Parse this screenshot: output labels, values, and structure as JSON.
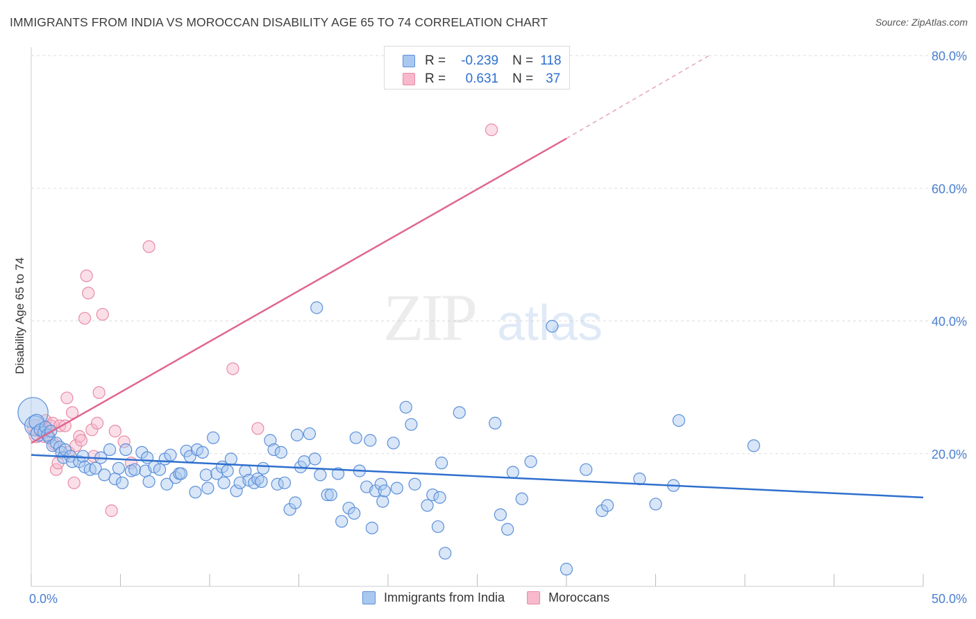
{
  "header": {
    "title": "IMMIGRANTS FROM INDIA VS MOROCCAN DISABILITY AGE 65 TO 74 CORRELATION CHART",
    "source": "Source: ZipAtlas.com"
  },
  "watermark": {
    "zip": "ZIP",
    "atlas": "atlas"
  },
  "legend": {
    "rows": [
      {
        "r_label": "R =",
        "r_value": "-0.239",
        "n_label": "N =",
        "n_value": "118"
      },
      {
        "r_label": "R =",
        "r_value": "0.631",
        "n_label": "N =",
        "n_value": "37"
      }
    ]
  },
  "colors": {
    "india_fill": "#a9c8f0",
    "india_stroke": "#5b8fd8",
    "india_line": "#2f6fce",
    "moroccan_fill": "#f7b9cb",
    "moroccan_stroke": "#e98aa5",
    "moroccan_line": "#e0668f",
    "grid": "#dddddd",
    "tick_label": "#4a7fd0"
  },
  "chart_data": {
    "type": "scatter",
    "title": "IMMIGRANTS FROM INDIA VS MOROCCAN DISABILITY AGE 65 TO 74 CORRELATION CHART",
    "xlabel": "",
    "ylabel": "Disability Age 65 to 74",
    "xlim": [
      0,
      50
    ],
    "ylim": [
      0,
      80
    ],
    "x_tick_labels": [
      "0.0%",
      "50.0%"
    ],
    "y_ticks": [
      20,
      40,
      60,
      80
    ],
    "y_tick_labels": [
      "20.0%",
      "40.0%",
      "60.0%",
      "80.0%"
    ],
    "grid": true,
    "legend_position": "top-center",
    "series": [
      {
        "name": "Immigrants from India",
        "trend": {
          "x0": 0,
          "y0": 19.8,
          "x1": 50,
          "y1": 13.4
        },
        "points": [
          [
            0.1,
            26.2,
            3
          ],
          [
            0.2,
            24.2,
            2
          ],
          [
            0.3,
            24.8,
            1.5
          ],
          [
            0.4,
            23.0,
            1.5
          ],
          [
            0.5,
            23.6,
            1
          ],
          [
            0.7,
            23.2,
            1
          ],
          [
            0.8,
            24.0,
            1
          ],
          [
            0.9,
            22.8,
            1
          ],
          [
            1.0,
            22.4,
            1
          ],
          [
            1.1,
            23.4,
            1
          ],
          [
            1.2,
            21.2,
            1
          ],
          [
            1.4,
            21.6,
            1
          ],
          [
            1.6,
            21.0,
            1
          ],
          [
            1.7,
            20.2,
            1
          ],
          [
            1.8,
            19.4,
            1
          ],
          [
            1.9,
            20.6,
            1
          ],
          [
            2.2,
            19.6,
            1
          ],
          [
            2.3,
            18.8,
            1
          ],
          [
            2.7,
            18.8,
            1
          ],
          [
            2.9,
            19.6,
            1
          ],
          [
            3.0,
            18.0,
            1
          ],
          [
            3.3,
            17.6,
            1
          ],
          [
            3.6,
            17.8,
            1
          ],
          [
            3.9,
            19.4,
            1
          ],
          [
            4.1,
            16.8,
            1
          ],
          [
            4.4,
            20.6,
            1
          ],
          [
            4.7,
            16.2,
            1
          ],
          [
            4.9,
            17.8,
            1
          ],
          [
            5.1,
            15.6,
            1
          ],
          [
            5.3,
            20.6,
            1
          ],
          [
            5.6,
            17.4,
            1
          ],
          [
            5.8,
            17.6,
            1
          ],
          [
            6.2,
            20.2,
            1
          ],
          [
            6.4,
            17.4,
            1
          ],
          [
            6.5,
            19.4,
            1
          ],
          [
            6.6,
            15.8,
            1
          ],
          [
            6.9,
            18.0,
            1
          ],
          [
            7.2,
            17.6,
            1
          ],
          [
            7.5,
            19.2,
            1
          ],
          [
            7.6,
            15.4,
            1
          ],
          [
            7.8,
            19.8,
            1
          ],
          [
            8.1,
            16.4,
            1
          ],
          [
            8.3,
            17.0,
            1
          ],
          [
            8.4,
            17.0,
            1
          ],
          [
            8.7,
            20.4,
            1
          ],
          [
            8.9,
            19.6,
            1
          ],
          [
            9.2,
            14.2,
            1
          ],
          [
            9.3,
            20.6,
            1
          ],
          [
            9.6,
            20.2,
            1
          ],
          [
            9.8,
            16.8,
            1
          ],
          [
            9.9,
            14.8,
            1
          ],
          [
            10.2,
            22.4,
            1
          ],
          [
            10.4,
            17.0,
            1
          ],
          [
            10.7,
            18.0,
            1
          ],
          [
            10.8,
            15.6,
            1
          ],
          [
            11.0,
            17.4,
            1
          ],
          [
            11.2,
            19.2,
            1
          ],
          [
            11.5,
            14.4,
            1
          ],
          [
            11.7,
            15.6,
            1
          ],
          [
            12.0,
            17.4,
            1
          ],
          [
            12.2,
            16.0,
            1
          ],
          [
            12.5,
            15.6,
            1
          ],
          [
            12.7,
            16.2,
            1
          ],
          [
            12.9,
            15.8,
            1
          ],
          [
            13.0,
            17.8,
            1
          ],
          [
            13.4,
            22.0,
            1
          ],
          [
            13.6,
            20.6,
            1
          ],
          [
            13.8,
            15.4,
            1
          ],
          [
            14.0,
            20.2,
            1
          ],
          [
            14.2,
            15.6,
            1
          ],
          [
            14.5,
            11.6,
            1
          ],
          [
            14.8,
            12.6,
            1
          ],
          [
            14.9,
            22.8,
            1
          ],
          [
            15.1,
            18.0,
            1
          ],
          [
            15.3,
            18.8,
            1
          ],
          [
            15.6,
            23.0,
            1
          ],
          [
            15.9,
            19.2,
            1
          ],
          [
            16.0,
            42.0,
            1
          ],
          [
            16.2,
            16.8,
            1
          ],
          [
            16.6,
            13.8,
            1
          ],
          [
            16.8,
            13.8,
            1
          ],
          [
            17.2,
            17.0,
            1
          ],
          [
            17.4,
            9.8,
            1
          ],
          [
            17.8,
            11.8,
            1
          ],
          [
            18.1,
            11.0,
            1
          ],
          [
            18.2,
            22.4,
            1
          ],
          [
            18.4,
            17.4,
            1
          ],
          [
            18.8,
            15.0,
            1
          ],
          [
            19.0,
            22.0,
            1
          ],
          [
            19.1,
            8.8,
            1
          ],
          [
            19.3,
            14.4,
            1
          ],
          [
            19.7,
            12.8,
            1
          ],
          [
            19.6,
            15.4,
            1
          ],
          [
            19.8,
            14.4,
            1
          ],
          [
            20.3,
            21.6,
            1
          ],
          [
            20.5,
            14.8,
            1
          ],
          [
            21.0,
            27.0,
            1
          ],
          [
            21.3,
            24.4,
            1
          ],
          [
            21.5,
            15.4,
            1
          ],
          [
            22.2,
            12.2,
            1
          ],
          [
            22.5,
            13.8,
            1
          ],
          [
            22.8,
            9.0,
            1
          ],
          [
            22.9,
            13.4,
            1
          ],
          [
            23.0,
            18.6,
            1
          ],
          [
            23.2,
            5.0,
            1
          ],
          [
            24.0,
            26.2,
            1
          ],
          [
            26.0,
            24.6,
            1
          ],
          [
            26.3,
            10.8,
            1
          ],
          [
            26.7,
            8.6,
            1
          ],
          [
            27.0,
            17.2,
            1
          ],
          [
            27.5,
            13.2,
            1
          ],
          [
            28.0,
            18.8,
            1
          ],
          [
            29.2,
            39.2,
            1
          ],
          [
            30.0,
            2.6,
            1
          ],
          [
            31.1,
            17.6,
            1
          ],
          [
            32.0,
            11.4,
            1
          ],
          [
            32.3,
            12.2,
            1
          ],
          [
            34.1,
            16.2,
            1
          ],
          [
            35.0,
            12.4,
            1
          ],
          [
            36.0,
            15.2,
            1
          ],
          [
            36.3,
            25.0,
            1
          ],
          [
            40.5,
            21.2,
            1
          ]
        ]
      },
      {
        "name": "Moroccans",
        "trend": {
          "x0": 0,
          "y0": 21.6,
          "x1": 30.0,
          "y1": 67.5,
          "dash_to_x": 38,
          "dash_to_y": 80
        },
        "points": [
          [
            0.2,
            24.0,
            1.5
          ],
          [
            0.3,
            22.8,
            1.5
          ],
          [
            0.5,
            23.4,
            1
          ],
          [
            0.7,
            22.6,
            1
          ],
          [
            0.8,
            25.0,
            1
          ],
          [
            0.9,
            23.8,
            1
          ],
          [
            1.0,
            22.6,
            1
          ],
          [
            1.1,
            24.2,
            1
          ],
          [
            1.2,
            24.6,
            1
          ],
          [
            1.3,
            21.4,
            1
          ],
          [
            1.4,
            17.6,
            1
          ],
          [
            1.5,
            18.6,
            1
          ],
          [
            1.6,
            24.2,
            1
          ],
          [
            1.9,
            24.2,
            1
          ],
          [
            2.0,
            28.4,
            1
          ],
          [
            2.1,
            20.2,
            1
          ],
          [
            2.3,
            26.2,
            1
          ],
          [
            2.4,
            15.6,
            1
          ],
          [
            2.5,
            21.2,
            1
          ],
          [
            2.7,
            22.6,
            1
          ],
          [
            2.8,
            22.0,
            1
          ],
          [
            3.1,
            46.8,
            1
          ],
          [
            3.2,
            44.2,
            1
          ],
          [
            3.4,
            23.6,
            1
          ],
          [
            3.5,
            19.6,
            1
          ],
          [
            3.7,
            24.6,
            1
          ],
          [
            3.8,
            29.2,
            1
          ],
          [
            3.0,
            40.4,
            1
          ],
          [
            4.0,
            41.0,
            1
          ],
          [
            4.5,
            11.4,
            1
          ],
          [
            4.7,
            23.4,
            1
          ],
          [
            5.2,
            21.8,
            1
          ],
          [
            5.6,
            18.6,
            1
          ],
          [
            6.6,
            51.2,
            1
          ],
          [
            11.3,
            32.8,
            1
          ],
          [
            12.7,
            23.8,
            1
          ],
          [
            25.8,
            68.8,
            1
          ]
        ]
      }
    ]
  },
  "bottom_legend": {
    "items": [
      {
        "label": "Immigrants from India"
      },
      {
        "label": "Moroccans"
      }
    ]
  }
}
